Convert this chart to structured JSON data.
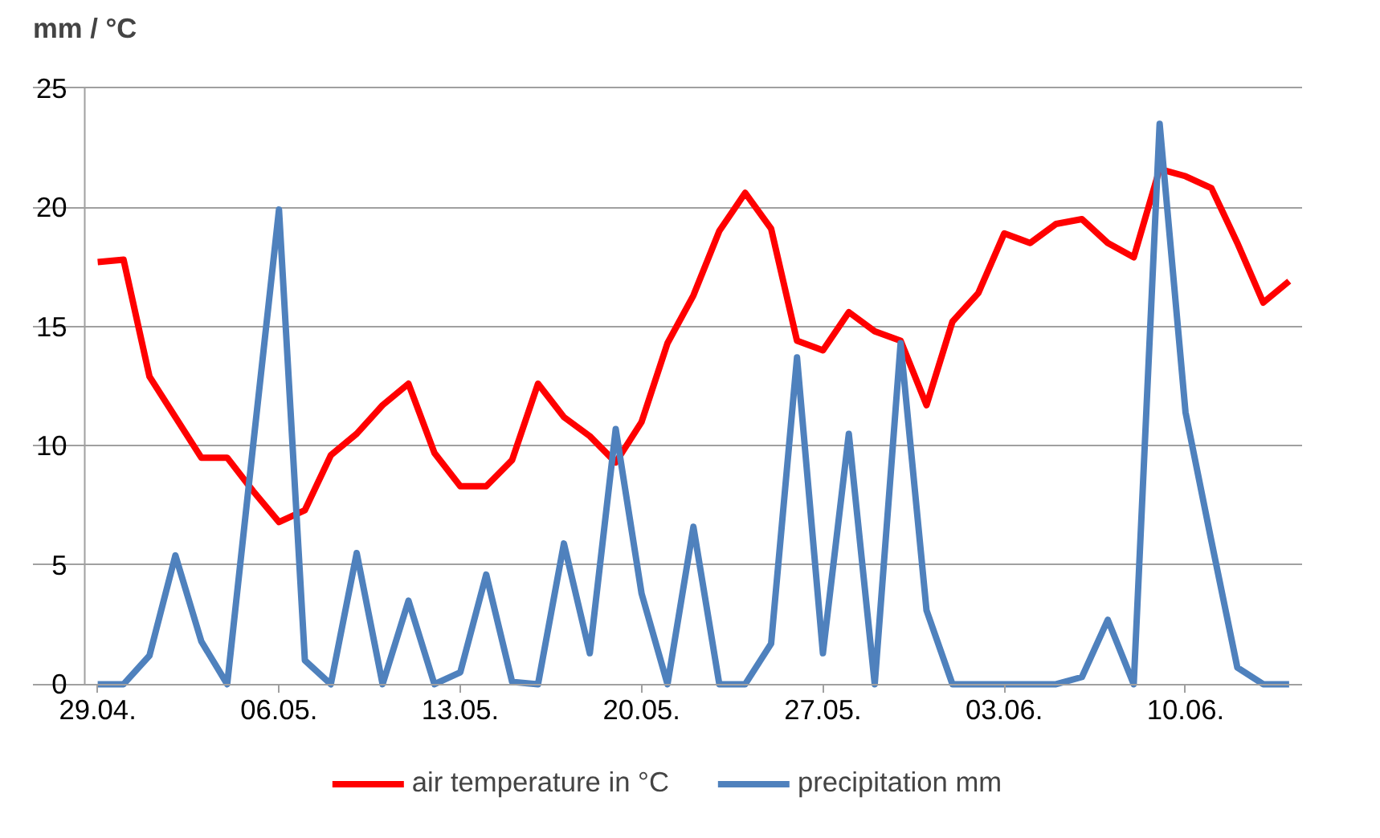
{
  "chart_data": {
    "type": "line",
    "ylabel": "mm / °C",
    "categories": [
      "29.04.",
      null,
      null,
      null,
      null,
      null,
      null,
      "06.05.",
      null,
      null,
      null,
      null,
      null,
      null,
      "13.05.",
      null,
      null,
      null,
      null,
      null,
      null,
      "20.05.",
      null,
      null,
      null,
      null,
      null,
      null,
      "27.05.",
      null,
      null,
      null,
      null,
      null,
      null,
      "03.06.",
      null,
      null,
      null,
      null,
      null,
      null,
      "10.06.",
      null,
      null,
      null,
      null
    ],
    "series": [
      {
        "name": "air temperature in °C",
        "color": "#ff0000",
        "values": [
          17.7,
          17.8,
          12.9,
          11.2,
          9.5,
          9.5,
          8.1,
          6.8,
          7.3,
          9.6,
          10.5,
          11.7,
          12.6,
          9.7,
          8.3,
          8.3,
          9.4,
          12.6,
          11.2,
          10.4,
          9.3,
          11.0,
          14.3,
          16.3,
          19.0,
          20.6,
          19.1,
          14.4,
          14.0,
          15.6,
          14.8,
          14.4,
          11.7,
          15.2,
          16.4,
          18.9,
          18.5,
          19.3,
          19.5,
          18.5,
          17.9,
          21.6,
          21.3,
          20.8,
          18.5,
          16.0,
          16.9
        ]
      },
      {
        "name": "precipitation mm",
        "color": "#4f81bd",
        "values": [
          0,
          0,
          1.2,
          5.4,
          1.8,
          0,
          10,
          19.9,
          1.0,
          0,
          5.5,
          0,
          3.5,
          0,
          0.5,
          4.6,
          0.1,
          0,
          5.9,
          1.3,
          10.7,
          3.8,
          0,
          6.6,
          0,
          0,
          1.7,
          13.7,
          1.3,
          10.5,
          0,
          14.3,
          3.1,
          0,
          0,
          0,
          0,
          0,
          0.3,
          2.7,
          0,
          23.5,
          11.4,
          6.0,
          0.7,
          0,
          0
        ]
      }
    ],
    "ylim": [
      0,
      25
    ],
    "yticks": [
      0,
      5,
      10,
      15,
      20,
      25
    ],
    "grid": "y",
    "legend": "bottom",
    "line_style": "solid",
    "marker": "none"
  }
}
